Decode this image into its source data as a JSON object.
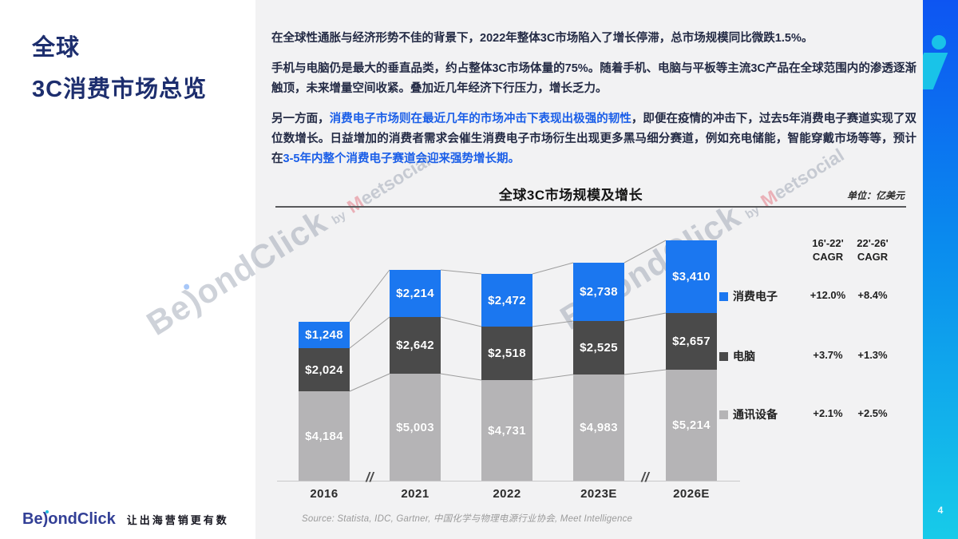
{
  "colors": {
    "accent_blue": "#1b77f0",
    "dark_gray": "#4a4a4a",
    "light_gray": "#b5b4b6",
    "title_navy": "#1d2e6e",
    "highlight_blue": "#1a5ee8"
  },
  "side_title": {
    "line1": "全球",
    "line2": "3C消费市场总览"
  },
  "paragraphs": {
    "p1": "在全球性通胀与经济形势不佳的背景下，2022年整体3C市场陷入了增长停滞，总市场规模同比微跌1.5%。",
    "p2": "手机与电脑仍是最大的垂直品类，约占整体3C市场体量的75%。随着手机、电脑与平板等主流3C产品在全球范围内的渗透逐渐触顶，未来增量空间收紧。叠加近几年经济下行压力，增长乏力。",
    "p3_prefix": "另一方面，",
    "p3_highlight1": "消费电子市场则在最近几年的市场冲击下表现出极强的韧性",
    "p3_mid": "，即便在疫情的冲击下，过去5年消费电子赛道实现了双位数增长。日益增加的消费者需求会催生消费电子市场衍生出现更多黑马细分赛道，例如充电储能，智能穿戴市场等等，预计在",
    "p3_highlight2": "3-5年内整个消费电子赛道会迎来强势增长期。"
  },
  "chart_data": {
    "type": "bar",
    "stacked": true,
    "title": "全球3C市场规模及增长",
    "unit_label": "单位：亿美元",
    "categories": [
      "2016",
      "2021",
      "2022",
      "2023E",
      "2026E"
    ],
    "series": [
      {
        "name": "消费电子",
        "color": "#1b77f0",
        "values": [
          1248,
          2214,
          2472,
          2738,
          3410
        ],
        "display": [
          "$1,248",
          "$2,214",
          "$2,472",
          "$2,738",
          "$3,410"
        ],
        "cagr_16_22": "+12.0%",
        "cagr_22_26": "+8.4%"
      },
      {
        "name": "电脑",
        "color": "#4a4a4a",
        "values": [
          2024,
          2642,
          2518,
          2525,
          2657
        ],
        "display": [
          "$2,024",
          "$2,642",
          "$2,518",
          "$2,525",
          "$2,657"
        ],
        "cagr_16_22": "+3.7%",
        "cagr_22_26": "+1.3%"
      },
      {
        "name": "通讯设备",
        "color": "#b5b4b6",
        "values": [
          4184,
          5003,
          4731,
          4983,
          5214
        ],
        "display": [
          "$4,184",
          "$5,003",
          "$4,731",
          "$4,983",
          "$5,214"
        ],
        "cagr_16_22": "+2.1%",
        "cagr_22_26": "+2.5%"
      }
    ],
    "cagr_headers": [
      {
        "l1": "16'-22'",
        "l2": "CAGR"
      },
      {
        "l1": "22'-26'",
        "l2": "CAGR"
      }
    ],
    "axis_breaks_after": [
      0,
      3
    ],
    "source": "Source: Statista, IDC, Gartner, 中国化学与物理电源行业协会, Meet Intelligence",
    "legend_position": "right",
    "grid": false
  },
  "watermark": {
    "pre": "Be",
    "y": ")",
    "post": "ondClick",
    "by": "by",
    "suffix_m": "M",
    "suffix_rest": "eetsocial"
  },
  "footer": {
    "pre": "Be",
    "y": ")",
    "post": "ondClick",
    "tagline": "让出海营销更有数"
  },
  "page_number": "4"
}
